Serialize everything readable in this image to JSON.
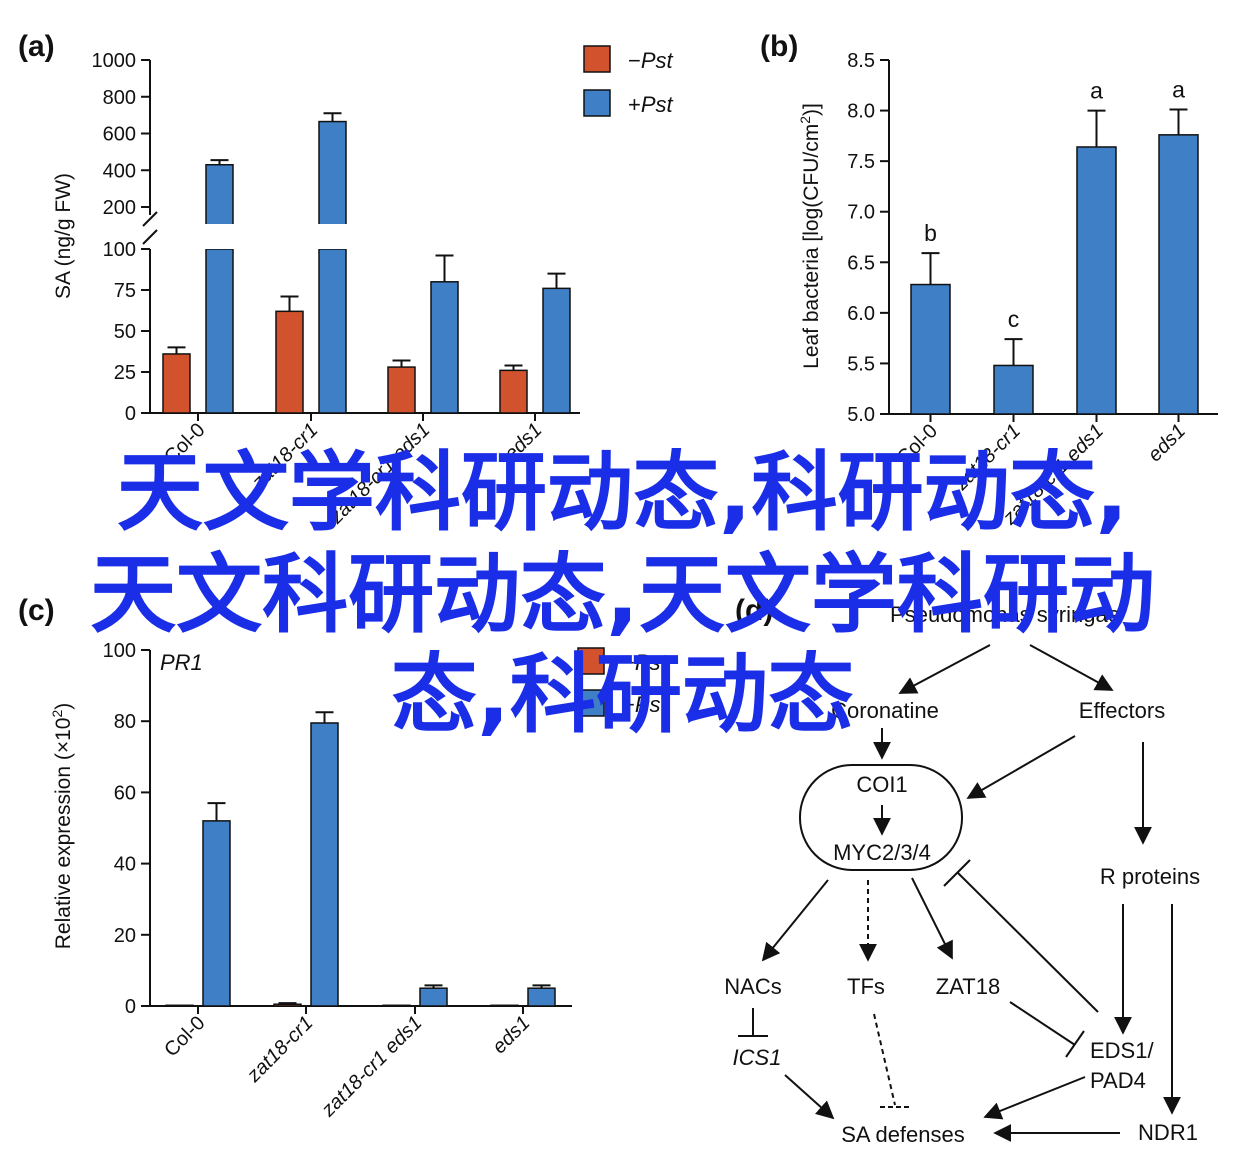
{
  "chart_data": [
    {
      "panel": "(a)",
      "type": "bar",
      "ylabel": "SA (ng/g FW)",
      "axis_break": true,
      "ylim_lower": [
        0,
        100
      ],
      "ylim_upper": [
        100,
        1000
      ],
      "yticks_lower": [
        "0",
        "25",
        "50",
        "75",
        "100"
      ],
      "yticks_upper": [
        "200",
        "400",
        "600",
        "800",
        "1000"
      ],
      "categories": [
        "Col-0",
        "zat18-cr1",
        "zat18-cr1 eds1",
        "eds1"
      ],
      "legend": [
        {
          "sign": "−",
          "name": "Pst",
          "color": "#d2522d"
        },
        {
          "sign": "+",
          "name": "Pst",
          "color": "#3f7fc6"
        }
      ],
      "series": [
        {
          "values": [
            36,
            62,
            28,
            26
          ],
          "errors": [
            4,
            9,
            4,
            3
          ],
          "color": "#d2522d"
        },
        {
          "values": [
            430,
            665,
            80,
            76
          ],
          "errors": [
            25,
            45,
            16,
            9
          ],
          "color": "#3f7fc6"
        }
      ]
    },
    {
      "panel": "(b)",
      "type": "bar",
      "ylabel": "Leaf bacteria [log(CFU/cm²)]",
      "ylim": [
        5.0,
        8.5
      ],
      "yticks": [
        "5.0",
        "5.5",
        "6.0",
        "6.5",
        "7.0",
        "7.5",
        "8.0",
        "8.5"
      ],
      "categories": [
        "Col-0",
        "zat18-cr1",
        "zat18-cr1 eds1",
        "eds1"
      ],
      "series": [
        {
          "values": [
            6.28,
            5.48,
            7.64,
            7.76
          ],
          "errors": [
            0.31,
            0.26,
            0.36,
            0.25
          ],
          "letters": [
            "b",
            "c",
            "a",
            "a"
          ],
          "color": "#3f7fc6"
        }
      ]
    },
    {
      "panel": "(c)",
      "type": "bar",
      "subtitle": "PR1",
      "ylabel": "Relative expression (×10²)",
      "ylim": [
        0,
        100
      ],
      "yticks": [
        "0",
        "20",
        "40",
        "60",
        "80",
        "100"
      ],
      "categories": [
        "Col-0",
        "zat18-cr1",
        "zat18-cr1 eds1",
        "eds1"
      ],
      "legend": [
        {
          "sign": "−",
          "name": "Pst",
          "color": "#d2522d"
        },
        {
          "sign": "+",
          "name": "Pst",
          "color": "#3f7fc6"
        }
      ],
      "series": [
        {
          "values": [
            0.2,
            0.5,
            0.2,
            0.2
          ],
          "errors": [
            0,
            0.3,
            0,
            0
          ],
          "color": "#d2522d"
        },
        {
          "values": [
            52,
            79.5,
            5,
            5
          ],
          "errors": [
            5,
            3,
            0.8,
            0.8
          ],
          "color": "#3f7fc6"
        }
      ]
    }
  ],
  "diagram": {
    "panel": "(d)",
    "nodes": {
      "pseudomonas": "Pseudomonas syringae",
      "coronatine": "Coronatine",
      "effectors": "Effectors",
      "coi1": "COI1",
      "myc": "MYC2/3/4",
      "rproteins": "R proteins",
      "nacs": "NACs",
      "tfs": "TFs",
      "zat18": "ZAT18",
      "ics1": "ICS1",
      "eds1pad4_line1": "EDS1/",
      "eds1pad4_line2": "PAD4",
      "sadef": "SA defenses",
      "ndr1": "NDR1"
    }
  },
  "watermark": {
    "line1": "天文学科研动态,科研动态,",
    "line2": "天文科研动态,天文学科研动",
    "line3": "态,科研动态"
  }
}
